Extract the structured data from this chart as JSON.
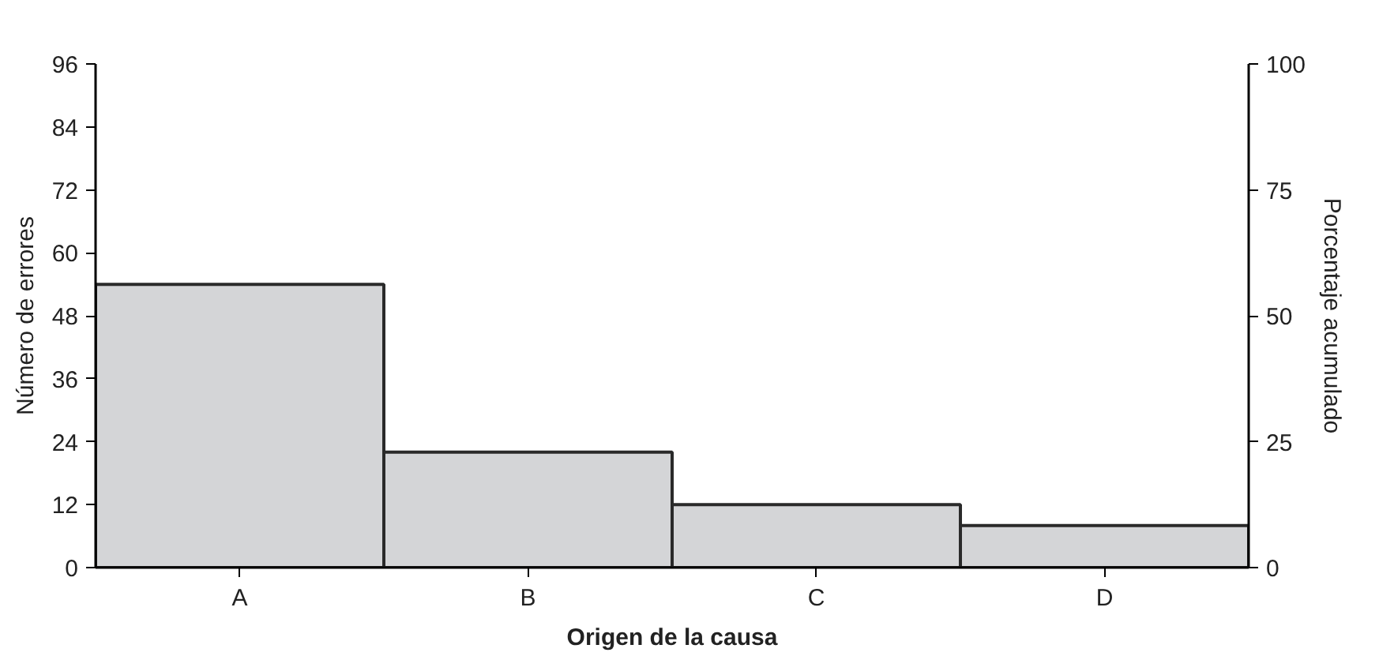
{
  "chart_data": {
    "type": "bar",
    "xlabel": "Origen de la causa",
    "ylabel": "Número de errores",
    "y2label": "Porcentaje acumulado",
    "categories": [
      "A",
      "B",
      "C",
      "D"
    ],
    "values": [
      54,
      22,
      12,
      8
    ],
    "color": "#d4d5d7",
    "ylim": [
      0,
      96
    ],
    "yticks": [
      0,
      12,
      24,
      36,
      48,
      60,
      72,
      84,
      96
    ],
    "y2lim": [
      0,
      100
    ],
    "y2ticks": [
      0,
      25,
      50,
      75,
      100
    ],
    "grid": false
  }
}
